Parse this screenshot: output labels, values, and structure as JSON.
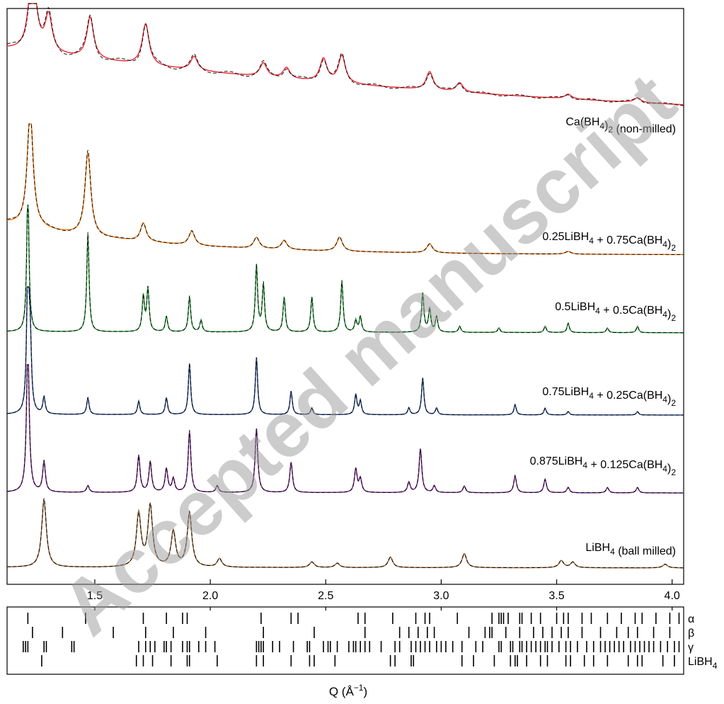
{
  "chart_data": {
    "type": "line",
    "xlabel": "Q (Å⁻¹)",
    "xlim": [
      1.12,
      4.05
    ],
    "xticks": [
      "1.5",
      "2.0",
      "2.5",
      "3.0",
      "3.5",
      "4.0"
    ],
    "xtick_values": [
      1.5,
      2.0,
      2.5,
      3.0,
      3.5,
      4.0
    ],
    "y_axis": "stacked, unlabeled intensity (offset patterns)",
    "line_styles": {
      "observed": "solid colored",
      "fit": "dashed black"
    },
    "series": [
      {
        "name": "Ca(BH4)2 (non-milled)",
        "label_main": "Ca(BH",
        "label_sub": "4",
        "label_after": ")",
        "label_sub2": "2",
        "label_tail": " (non-milled)",
        "color": "#e8323c",
        "baseline": 0.93,
        "slope": 0.12,
        "peaks": [
          [
            1.23,
            1.0
          ],
          [
            1.3,
            0.4
          ],
          [
            1.48,
            0.45
          ],
          [
            1.72,
            0.45
          ],
          [
            1.93,
            0.15
          ],
          [
            2.23,
            0.15
          ],
          [
            2.33,
            0.12
          ],
          [
            2.49,
            0.25
          ],
          [
            2.57,
            0.3
          ],
          [
            2.95,
            0.2
          ],
          [
            3.08,
            0.1
          ],
          [
            3.55,
            0.05
          ],
          [
            3.85,
            0.05
          ]
        ],
        "width": 0.018
      },
      {
        "name": "0.25LiBH4 + 0.75Ca(BH4)2",
        "label_main": "0.25LiBH",
        "label_sub": "4",
        "label_after": " + 0.75Ca(BH",
        "label_sub3": "4",
        "label_after3": ")",
        "label_sub2": "2",
        "label_tail": "",
        "color": "#f07f1e",
        "baseline": 0.35,
        "slope": 0.5,
        "peaks": [
          [
            1.22,
            1.3
          ],
          [
            1.47,
            0.9
          ],
          [
            1.71,
            0.2
          ],
          [
            1.92,
            0.15
          ],
          [
            2.2,
            0.12
          ],
          [
            2.32,
            0.1
          ],
          [
            2.56,
            0.15
          ],
          [
            2.95,
            0.1
          ],
          [
            3.55,
            0.03
          ]
        ],
        "width": 0.015
      },
      {
        "name": "0.5LiBH4 + 0.5Ca(BH4)2",
        "label_main": "0.5LiBH",
        "label_sub": "4",
        "label_after": " + 0.5Ca(BH",
        "label_sub3": "4",
        "label_after3": ")",
        "label_sub2": "2",
        "label_tail": "",
        "color": "#2e9a3c",
        "baseline": 0.05,
        "slope": 0.03,
        "peaks": [
          [
            1.21,
            1.8
          ],
          [
            1.47,
            1.25
          ],
          [
            1.71,
            0.45
          ],
          [
            1.73,
            0.55
          ],
          [
            1.81,
            0.2
          ],
          [
            1.91,
            0.45
          ],
          [
            1.96,
            0.15
          ],
          [
            2.2,
            0.85
          ],
          [
            2.23,
            0.6
          ],
          [
            2.32,
            0.45
          ],
          [
            2.44,
            0.45
          ],
          [
            2.57,
            0.65
          ],
          [
            2.63,
            0.15
          ],
          [
            2.65,
            0.2
          ],
          [
            2.92,
            0.5
          ],
          [
            2.95,
            0.3
          ],
          [
            2.98,
            0.2
          ],
          [
            3.08,
            0.08
          ],
          [
            3.25,
            0.06
          ],
          [
            3.45,
            0.08
          ],
          [
            3.55,
            0.12
          ],
          [
            3.72,
            0.06
          ],
          [
            3.85,
            0.08
          ]
        ],
        "width": 0.006
      },
      {
        "name": "0.75LiBH4 + 0.25Ca(BH4)2",
        "label_main": "0.75LiBH",
        "label_sub": "4",
        "label_after": " + 0.25Ca(BH",
        "label_sub3": "4",
        "label_after3": ")",
        "label_sub2": "2",
        "label_tail": "",
        "color": "#2a4a8a",
        "baseline": 0.05,
        "slope": 0.02,
        "peaks": [
          [
            1.21,
            2.2
          ],
          [
            1.22,
            1.0
          ],
          [
            1.28,
            0.25
          ],
          [
            1.47,
            0.25
          ],
          [
            1.69,
            0.2
          ],
          [
            1.81,
            0.25
          ],
          [
            1.91,
            0.75
          ],
          [
            2.2,
            0.85
          ],
          [
            2.35,
            0.35
          ],
          [
            2.44,
            0.1
          ],
          [
            2.63,
            0.3
          ],
          [
            2.65,
            0.2
          ],
          [
            2.86,
            0.1
          ],
          [
            2.92,
            0.55
          ],
          [
            2.98,
            0.1
          ],
          [
            3.32,
            0.15
          ],
          [
            3.45,
            0.1
          ],
          [
            3.55,
            0.05
          ],
          [
            3.85,
            0.05
          ]
        ],
        "width": 0.006
      },
      {
        "name": "0.875LiBH4 + 0.125Ca(BH4)2",
        "label_main": "0.875LiBH",
        "label_sub": "4",
        "label_after": " + 0.125Ca(BH",
        "label_sub3": "4",
        "label_after3": ")",
        "label_sub2": "2",
        "label_tail": "",
        "color": "#7a2a8a",
        "baseline": 0.05,
        "slope": 0.02,
        "peaks": [
          [
            1.21,
            2.2
          ],
          [
            1.28,
            0.45
          ],
          [
            1.47,
            0.1
          ],
          [
            1.69,
            0.55
          ],
          [
            1.74,
            0.45
          ],
          [
            1.81,
            0.35
          ],
          [
            1.84,
            0.2
          ],
          [
            1.91,
            0.9
          ],
          [
            2.03,
            0.1
          ],
          [
            2.2,
            0.95
          ],
          [
            2.35,
            0.45
          ],
          [
            2.63,
            0.35
          ],
          [
            2.65,
            0.2
          ],
          [
            2.86,
            0.15
          ],
          [
            2.91,
            0.65
          ],
          [
            2.97,
            0.1
          ],
          [
            3.1,
            0.1
          ],
          [
            3.32,
            0.25
          ],
          [
            3.45,
            0.2
          ],
          [
            3.55,
            0.08
          ],
          [
            3.72,
            0.08
          ],
          [
            3.85,
            0.08
          ]
        ],
        "width": 0.007
      },
      {
        "name": "LiBH4 (ball milled)",
        "label_main": "LiBH",
        "label_sub": "4",
        "label_after": " (ball milled)",
        "label_tail": "",
        "color": "#9a6a3a",
        "baseline": 0.05,
        "slope": 0.02,
        "peaks": [
          [
            1.28,
            0.95
          ],
          [
            1.69,
            0.75
          ],
          [
            1.74,
            0.85
          ],
          [
            1.84,
            0.5
          ],
          [
            1.91,
            0.75
          ],
          [
            2.04,
            0.12
          ],
          [
            2.44,
            0.08
          ],
          [
            2.55,
            0.06
          ],
          [
            2.78,
            0.15
          ],
          [
            3.1,
            0.2
          ],
          [
            3.52,
            0.1
          ],
          [
            3.57,
            0.08
          ],
          [
            3.97,
            0.05
          ]
        ],
        "width": 0.012
      }
    ],
    "tick_rows": [
      {
        "label": "α",
        "positions": [
          1.21,
          1.46,
          1.71,
          1.81,
          1.88,
          1.9,
          2.22,
          2.35,
          2.38,
          2.64,
          2.67,
          2.79,
          2.89,
          2.93,
          2.95,
          3.07,
          3.22,
          3.25,
          3.26,
          3.27,
          3.29,
          3.34,
          3.35,
          3.39,
          3.43,
          3.5,
          3.53,
          3.55,
          3.61,
          3.65,
          3.72,
          3.78,
          3.84,
          3.87,
          3.93,
          3.99,
          4.03
        ]
      },
      {
        "label": "β",
        "positions": [
          1.23,
          1.36,
          1.58,
          1.72,
          1.84,
          1.98,
          2.23,
          2.45,
          2.67,
          2.82,
          2.86,
          2.9,
          2.94,
          2.97,
          3.12,
          3.19,
          3.21,
          3.22,
          3.28,
          3.34,
          3.4,
          3.44,
          3.48,
          3.52,
          3.55,
          3.61,
          3.69,
          3.76,
          3.81,
          3.85,
          3.92,
          3.99
        ]
      },
      {
        "label": "γ",
        "positions": [
          1.19,
          1.2,
          1.21,
          1.28,
          1.29,
          1.4,
          1.41,
          1.69,
          1.72,
          1.74,
          1.76,
          1.8,
          1.81,
          1.83,
          1.88,
          1.9,
          1.91,
          1.95,
          1.98,
          2.02,
          2.2,
          2.21,
          2.22,
          2.23,
          2.27,
          2.3,
          2.36,
          2.42,
          2.43,
          2.49,
          2.51,
          2.52,
          2.55,
          2.6,
          2.62,
          2.63,
          2.65,
          2.67,
          2.69,
          2.74,
          2.8,
          2.82,
          2.87,
          2.89,
          2.91,
          2.93,
          2.95,
          2.98,
          3.0,
          3.02,
          3.05,
          3.09,
          3.15,
          3.18,
          3.25,
          3.26,
          3.3,
          3.31,
          3.34,
          3.35,
          3.37,
          3.39,
          3.41,
          3.43,
          3.45,
          3.46,
          3.48,
          3.51,
          3.54,
          3.56,
          3.59,
          3.63,
          3.66,
          3.69,
          3.71,
          3.73,
          3.75,
          3.77,
          3.79,
          3.82,
          3.84,
          3.86,
          3.88,
          3.9,
          3.92,
          3.95,
          3.98,
          4.01,
          4.03
        ]
      },
      {
        "label": "LiBH4",
        "label_main": "LiBH",
        "label_sub": "4",
        "positions": [
          1.27,
          1.68,
          1.71,
          1.75,
          1.83,
          1.9,
          1.91,
          2.03,
          2.2,
          2.23,
          2.35,
          2.43,
          2.45,
          2.54,
          2.78,
          2.8,
          2.87,
          2.88,
          3.09,
          3.14,
          3.23,
          3.3,
          3.32,
          3.33,
          3.37,
          3.43,
          3.46,
          3.54,
          3.56,
          3.62,
          3.66,
          3.72,
          3.81,
          3.85,
          3.87,
          3.96,
          4.01
        ]
      }
    ]
  },
  "watermark": "Accepted manuscript"
}
